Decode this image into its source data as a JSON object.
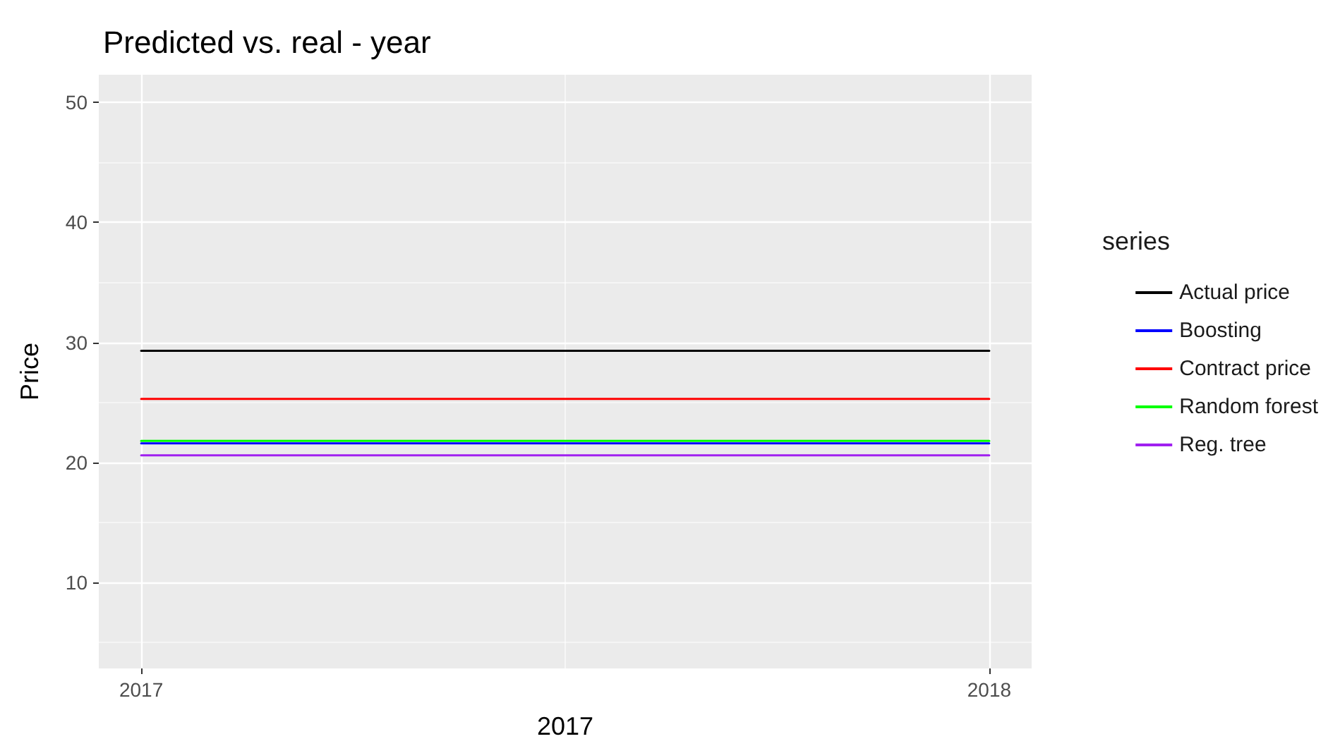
{
  "chart_data": {
    "type": "line",
    "title": "Predicted vs. real - year",
    "xlabel": "2017",
    "ylabel": "Price",
    "legend_title": "series",
    "x": [
      2017,
      2018
    ],
    "series": [
      {
        "name": "Actual price",
        "color": "#000000",
        "values": [
          29.3,
          29.3
        ]
      },
      {
        "name": "Boosting",
        "color": "#0000ff",
        "values": [
          21.6,
          21.6
        ]
      },
      {
        "name": "Contract price",
        "color": "#ff0000",
        "values": [
          25.3,
          25.3
        ]
      },
      {
        "name": "Random forest",
        "color": "#00ff00",
        "values": [
          21.8,
          21.8
        ]
      },
      {
        "name": "Reg. tree",
        "color": "#a020f0",
        "values": [
          20.6,
          20.6
        ]
      }
    ],
    "xlim": [
      2016.95,
      2018.05
    ],
    "xticks": [
      2017,
      2018
    ],
    "ylim": [
      2.84,
      52.3
    ],
    "yticks": [
      10,
      20,
      30,
      40,
      50
    ],
    "grid": true,
    "legend": "right",
    "marker": "none",
    "line_style": "solid"
  }
}
